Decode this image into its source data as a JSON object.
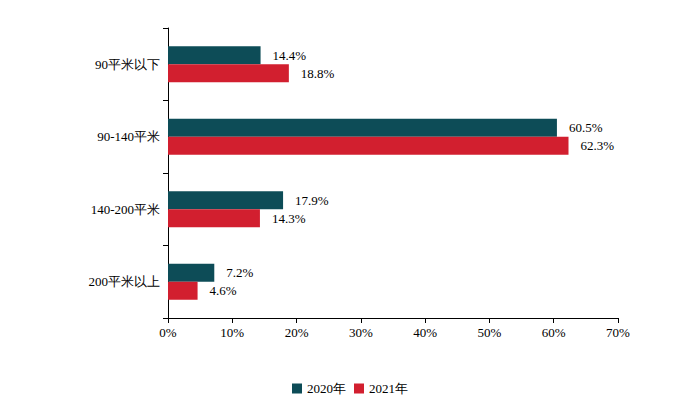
{
  "chart_data": {
    "type": "bar",
    "orientation": "horizontal",
    "categories": [
      "90平米以下",
      "90-140平米",
      "140-200平米",
      "200平米以上"
    ],
    "series": [
      {
        "name": "2020年",
        "color": "#0D4C57",
        "values": [
          14.4,
          60.5,
          17.9,
          7.2
        ],
        "value_labels": [
          "14.4%",
          "60.5%",
          "17.9%",
          "7.2%"
        ]
      },
      {
        "name": "2021年",
        "color": "#D21F2F",
        "values": [
          18.8,
          62.3,
          14.3,
          4.6
        ],
        "value_labels": [
          "18.8%",
          "62.3%",
          "14.3%",
          "4.6%"
        ]
      }
    ],
    "xlim": [
      0,
      70
    ],
    "xticks": [
      {
        "value": 0,
        "label": "0%"
      },
      {
        "value": 10,
        "label": "10%"
      },
      {
        "value": 20,
        "label": "20%"
      },
      {
        "value": 30,
        "label": "30%"
      },
      {
        "value": 40,
        "label": "40%"
      },
      {
        "value": 50,
        "label": "50%"
      },
      {
        "value": 60,
        "label": "60%"
      },
      {
        "value": 70,
        "label": "70%"
      }
    ],
    "grid": false,
    "legend": "bottom",
    "data_labels": true
  }
}
